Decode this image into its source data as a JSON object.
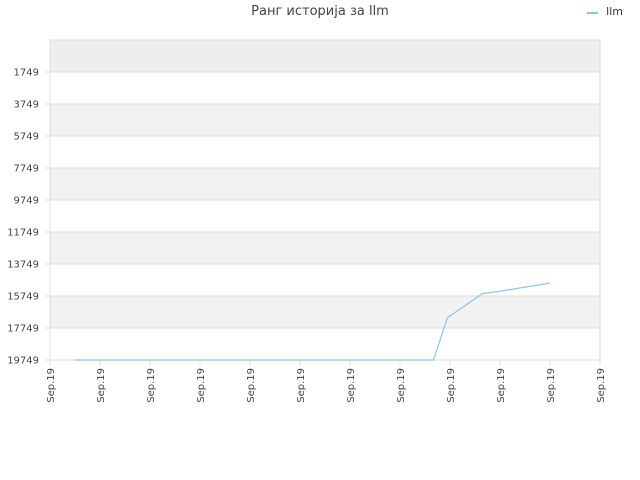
{
  "chart_data": {
    "type": "line",
    "title": "Ранг историја за llm",
    "xlabel": "",
    "ylabel": "",
    "y_inverted": true,
    "ylim": [
      -251,
      19749
    ],
    "yticks": [
      1749,
      3749,
      5749,
      7749,
      9749,
      11749,
      13749,
      15749,
      17749,
      19749
    ],
    "xticks": [
      "Sep.19",
      "Sep.19",
      "Sep.19",
      "Sep.19",
      "Sep.19",
      "Sep.19",
      "Sep.19",
      "Sep.19",
      "Sep.19",
      "Sep.19",
      "Sep.19",
      "Sep.19"
    ],
    "grid": true,
    "legend_position": "top-right",
    "series": [
      {
        "name": "llm",
        "color": "#8ec3e8",
        "x": [
          0.5,
          1,
          2,
          3,
          4,
          5,
          6,
          7,
          7.67,
          7.95,
          8.65,
          9,
          10
        ],
        "y": [
          19749,
          19749,
          19749,
          19749,
          19749,
          19749,
          19749,
          19749,
          19749,
          17100,
          15600,
          15450,
          14950
        ]
      }
    ]
  },
  "colors": {
    "band_shaded": "#f2f2f2",
    "band_top": "#eeeeee",
    "gridline": "#dddddd",
    "axis_border": "#dddddd"
  }
}
